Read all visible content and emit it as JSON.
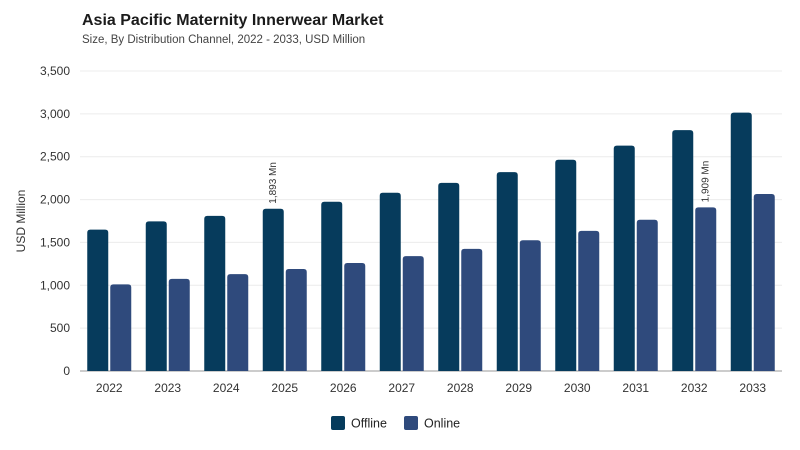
{
  "header": {
    "title": "Asia Pacific Maternity Innerwear Market",
    "subtitle": "Size, By Distribution Channel, 2022 - 2033, USD Million"
  },
  "colors": {
    "offline": "#063b5c",
    "online": "#2f4a7c",
    "grid": "#ececec"
  },
  "chart_data": {
    "type": "bar",
    "title": "Asia Pacific Maternity Innerwear Market",
    "subtitle": "Size, By Distribution Channel, 2022 - 2033, USD Million",
    "xlabel": "",
    "ylabel": "USD Million",
    "ylim": [
      0,
      3500
    ],
    "yticks": [
      "0",
      "500",
      "1,000",
      "1,500",
      "2,000",
      "2,500",
      "3,000",
      "3,500"
    ],
    "categories": [
      "2022",
      "2023",
      "2024",
      "2025",
      "2026",
      "2027",
      "2028",
      "2029",
      "2030",
      "2031",
      "2032",
      "2033"
    ],
    "series": [
      {
        "name": "Offline",
        "color": "#063b5c",
        "values": [
          1650,
          1745,
          1810,
          1893,
          1975,
          2080,
          2195,
          2320,
          2465,
          2630,
          2810,
          3015
        ]
      },
      {
        "name": "Online",
        "color": "#2f4a7c",
        "values": [
          1010,
          1075,
          1130,
          1190,
          1260,
          1340,
          1425,
          1525,
          1635,
          1765,
          1909,
          2065
        ]
      }
    ],
    "annotations": [
      {
        "series": 0,
        "category": "2025",
        "text": "1,893 Mn"
      },
      {
        "series": 1,
        "category": "2032",
        "text": "1,909 Mn"
      }
    ],
    "legend": "bottom-center",
    "grid": true
  }
}
